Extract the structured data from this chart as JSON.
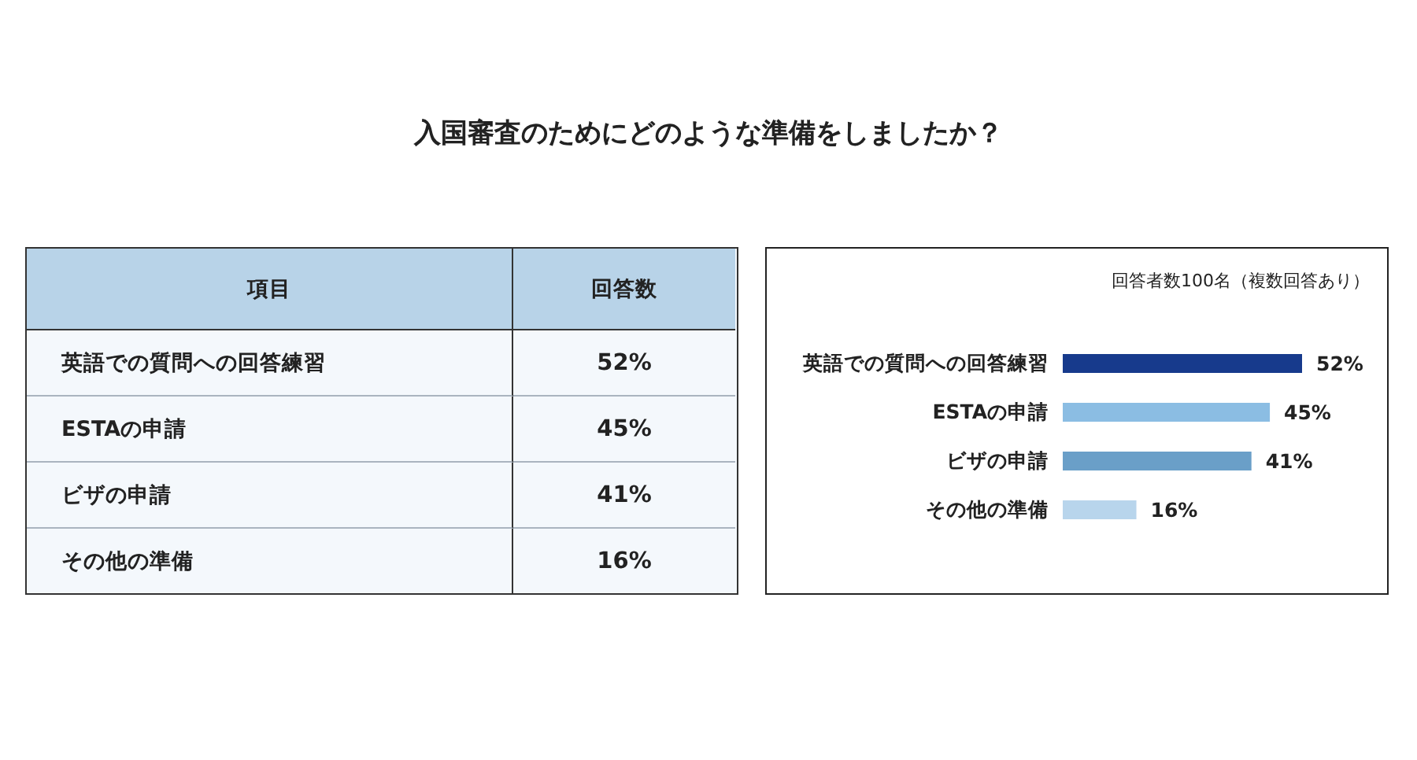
{
  "chart_data": {
    "type": "bar",
    "orientation": "horizontal",
    "title": "入国審査のためにどのような準備をしましたか？",
    "subtitle": "回答者数100名（複数回答あり）",
    "annotations": [
      "項目",
      "回答数"
    ],
    "categories": [
      "英語での質問への回答練習",
      "ESTAの申請",
      "ビザの申請",
      "その他の準備"
    ],
    "values": [
      52,
      45,
      41,
      16
    ],
    "colors": [
      "#173a8c",
      "#8bbde3",
      "#6a9fc8",
      "#b8d5ec"
    ],
    "value_labels": [
      "52%",
      "45%",
      "41%",
      "16%"
    ]
  }
}
